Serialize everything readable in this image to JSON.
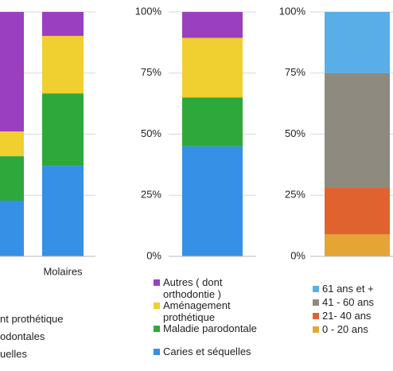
{
  "chart_data": [
    {
      "type": "stacked_bar",
      "categories": [
        null,
        "Molaires"
      ],
      "ylim": [
        0,
        100
      ],
      "yticks": [
        0,
        25,
        50,
        75,
        100
      ],
      "grid": true,
      "tick_labels": false,
      "series": [
        {
          "name": "uelles",
          "color": "#3590e6",
          "values": [
            22.8,
            37.1
          ]
        },
        {
          "name": "odontales",
          "color": "#2ea83b",
          "values": [
            18.2,
            29.6
          ]
        },
        {
          "name": "nt prothétique",
          "color": "#f0cf30",
          "values": [
            10.1,
            23.5
          ]
        },
        {
          "name": null,
          "color": "#9a3fbf",
          "values": [
            48.9,
            9.8
          ]
        }
      ]
    },
    {
      "type": "stacked_bar",
      "categories": [
        null
      ],
      "ylim": [
        0,
        100
      ],
      "grid": true,
      "tick_labels": true,
      "yticks": [
        {
          "value": 0,
          "label": "0%"
        },
        {
          "value": 25,
          "label": "25%"
        },
        {
          "value": 50,
          "label": "50%"
        },
        {
          "value": 75,
          "label": "75%"
        },
        {
          "value": 100,
          "label": "100%"
        }
      ],
      "series": [
        {
          "name": "Caries et séquelles",
          "color": "#3590e6",
          "values": [
            45
          ]
        },
        {
          "name": "Maladie parodontale",
          "color": "#2ea83b",
          "values": [
            20
          ]
        },
        {
          "name": "Aménagement prothétique",
          "color": "#f0cf30",
          "values": [
            24.4
          ]
        },
        {
          "name": "Autres ( dont orthodontie )",
          "color": "#9a3fbf",
          "values": [
            10.6
          ]
        }
      ]
    },
    {
      "type": "stacked_bar",
      "categories": [
        null
      ],
      "ylim": [
        0,
        100
      ],
      "grid": true,
      "tick_labels": true,
      "yticks": [
        {
          "value": 0,
          "label": "0%"
        },
        {
          "value": 25,
          "label": "25%"
        },
        {
          "value": 50,
          "label": "50%"
        },
        {
          "value": 75,
          "label": "75%"
        },
        {
          "value": 100,
          "label": "100%"
        }
      ],
      "series": [
        {
          "name": "0 - 20 ans",
          "color": "#e5a535",
          "values": [
            9
          ]
        },
        {
          "name": "21- 40 ans",
          "color": "#e0632f",
          "values": [
            19
          ]
        },
        {
          "name": "41 - 60 ans",
          "color": "#8f8a7f",
          "values": [
            47
          ]
        },
        {
          "name": "61 ans et +",
          "color": "#5aaee8",
          "values": [
            25
          ]
        }
      ]
    }
  ]
}
